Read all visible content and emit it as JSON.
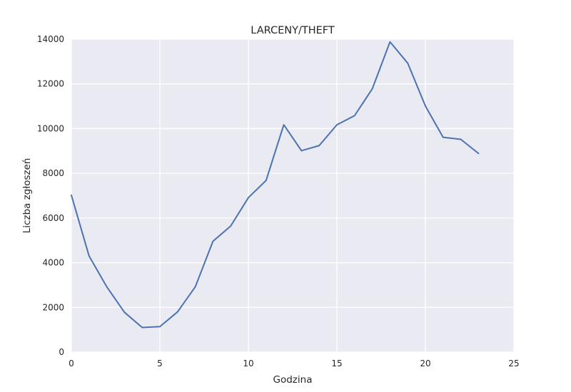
{
  "chart_data": {
    "type": "line",
    "title": "LARCENY/THEFT",
    "xlabel": "Godzina",
    "ylabel": "Liczba zgłoszeń",
    "xlim": [
      0,
      25
    ],
    "ylim": [
      0,
      14000
    ],
    "xticks": [
      0,
      5,
      10,
      15,
      20,
      25
    ],
    "yticks": [
      0,
      2000,
      4000,
      6000,
      8000,
      10000,
      12000,
      14000
    ],
    "grid": true,
    "line_color": "#4c72b0",
    "background_color": "#eaeaf2",
    "x": [
      0,
      1,
      2,
      3,
      4,
      5,
      6,
      7,
      8,
      9,
      10,
      11,
      12,
      13,
      14,
      15,
      16,
      17,
      18,
      19,
      20,
      21,
      22,
      23
    ],
    "series": [
      {
        "values": [
          7020,
          4300,
          2920,
          1780,
          1100,
          1140,
          1800,
          2920,
          4960,
          5640,
          6910,
          7680,
          10170,
          9010,
          9240,
          10170,
          10580,
          11780,
          13880,
          12930,
          11010,
          9610,
          9520,
          8890
        ]
      }
    ]
  }
}
